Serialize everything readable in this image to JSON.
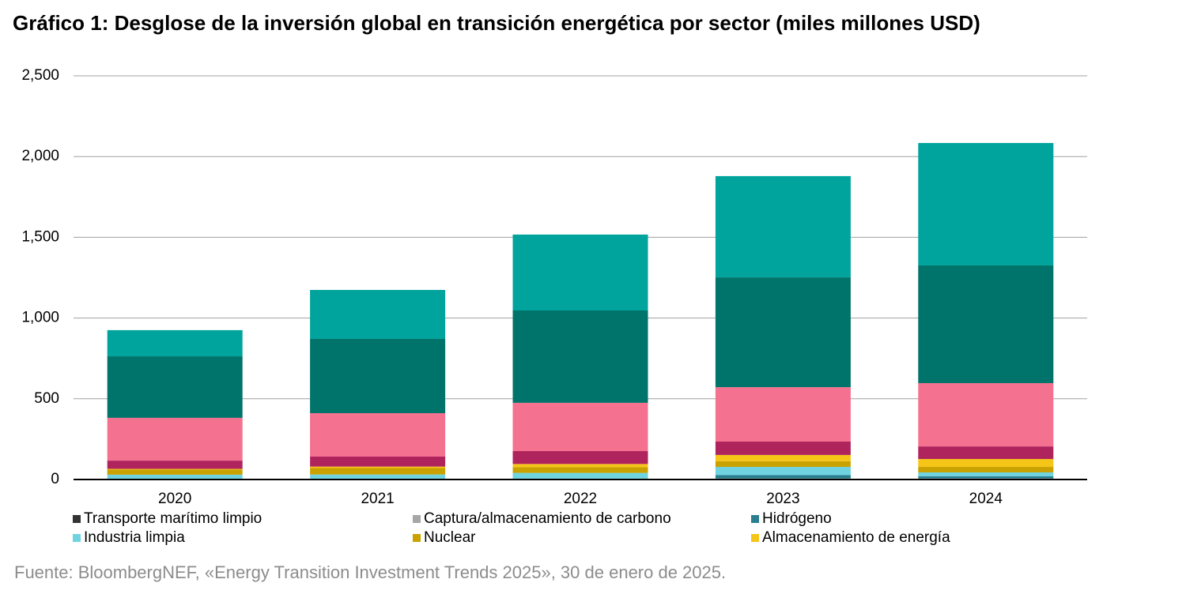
{
  "chart_data": {
    "type": "stacked_bar",
    "title": "Gráfico 1: Desglose de la inversión global en transición energética por sector (miles millones USD)",
    "source": "Fuente: BloombergNEF, «Energy Transition Investment Trends 2025», 30 de enero de 2025.",
    "categories": [
      "2020",
      "2021",
      "2022",
      "2023",
      "2024"
    ],
    "series": [
      {
        "name": "Transporte marítimo limpio",
        "color": "#333333",
        "values": [
          1,
          1,
          1,
          2,
          3
        ]
      },
      {
        "name": "Captura/almacenamiento de carbono",
        "color": "#a6a6a6",
        "values": [
          2,
          3,
          2,
          5,
          4
        ]
      },
      {
        "name": "Hidrógeno",
        "color": "#2a7f8f",
        "values": [
          2,
          2,
          3,
          20,
          13
        ]
      },
      {
        "name": "Industria limpia",
        "color": "#6fd3e0",
        "values": [
          25,
          25,
          35,
          51,
          24
        ]
      },
      {
        "name": "Nuclear",
        "color": "#c9a200",
        "values": [
          32,
          40,
          35,
          35,
          34
        ]
      },
      {
        "name": "Almacenamiento de energía",
        "color": "#f5c518",
        "values": [
          4,
          9,
          20,
          39,
          49
        ]
      },
      {
        "color": "#b0245e",
        "values": [
          51,
          62,
          80,
          83,
          78
        ]
      },
      {
        "color": "#f4718f",
        "values": [
          265,
          269,
          299,
          337,
          392
        ]
      },
      {
        "color": "#00736a",
        "values": [
          381,
          460,
          572,
          680,
          729
        ]
      },
      {
        "color": "#00a49c",
        "values": [
          162,
          303,
          470,
          627,
          758
        ]
      }
    ],
    "ylim": [
      0,
      2500
    ],
    "yticks": [
      0,
      500,
      {
        "value": 1000,
        "label": "1,000"
      },
      {
        "value": 1500,
        "label": "1,500"
      },
      {
        "value": 2000,
        "label": "2,000"
      },
      {
        "value": 2500,
        "label": "2,500"
      }
    ],
    "grid": true
  }
}
